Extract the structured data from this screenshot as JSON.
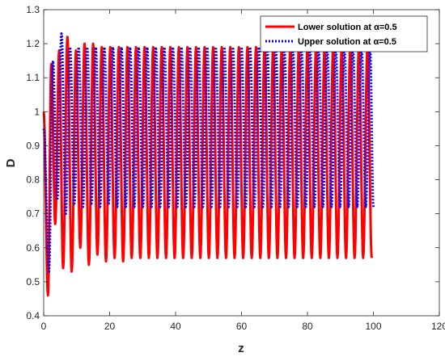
{
  "chart_data": {
    "type": "line",
    "title": "",
    "xlabel": "z",
    "ylabel": "D",
    "xlim": [
      0,
      120
    ],
    "ylim": [
      0.4,
      1.3
    ],
    "xticks": [
      "0",
      "20",
      "40",
      "60",
      "80",
      "100",
      "120"
    ],
    "yticks": [
      "0.4",
      "0.5",
      "0.6",
      "0.7",
      "0.8",
      "0.9",
      "1",
      "1.1",
      "1.2",
      "1.3"
    ],
    "grid": false,
    "legend_position": "top-right",
    "series": [
      {
        "name": "Lower solution at α=0.5",
        "color": "#ff0000",
        "style": "solid",
        "x": [
          0.0,
          1.3,
          2.3,
          3.5,
          4.7,
          5.9,
          7.2,
          8.5,
          9.8,
          11.1,
          12.4,
          13.7,
          15.0,
          16.3,
          17.6,
          18.9,
          20.2,
          21.5,
          22.8,
          24.1,
          25.4,
          26.7,
          28.0,
          29.3,
          30.6,
          31.9,
          33.2,
          34.5,
          35.8,
          37.1,
          38.4,
          39.7,
          41.0,
          42.3,
          43.6,
          44.9,
          46.2,
          47.5,
          48.8,
          50.1,
          51.4,
          52.7,
          54.0,
          55.3,
          56.6,
          57.9,
          59.2,
          60.5,
          61.8,
          63.1,
          64.4,
          65.7,
          67.0,
          68.3,
          69.6,
          70.9,
          72.2,
          73.5,
          74.8,
          76.1,
          77.4,
          78.7,
          80.0,
          81.3,
          82.6,
          83.9,
          85.2,
          86.5,
          87.8,
          89.1,
          90.4,
          91.7,
          93.0,
          94.3,
          95.6,
          96.9,
          98.2,
          99.5
        ],
        "y": [
          1.0,
          0.46,
          1.14,
          0.67,
          1.18,
          0.54,
          1.22,
          0.53,
          1.18,
          0.6,
          1.2,
          0.55,
          1.2,
          0.58,
          1.19,
          0.56,
          1.19,
          0.57,
          1.19,
          0.56,
          1.19,
          0.57,
          1.19,
          0.57,
          1.19,
          0.57,
          1.19,
          0.57,
          1.19,
          0.57,
          1.19,
          0.57,
          1.19,
          0.57,
          1.19,
          0.57,
          1.19,
          0.57,
          1.19,
          0.57,
          1.19,
          0.57,
          1.19,
          0.57,
          1.19,
          0.57,
          1.19,
          0.57,
          1.19,
          0.57,
          1.19,
          0.57,
          1.19,
          0.57,
          1.19,
          0.57,
          1.19,
          0.57,
          1.19,
          0.57,
          1.19,
          0.57,
          1.19,
          0.57,
          1.19,
          0.57,
          1.19,
          0.57,
          1.19,
          0.57,
          1.19,
          0.57,
          1.19,
          0.57,
          1.19,
          0.57,
          1.19,
          0.57
        ]
      },
      {
        "name": "Upper solution at α=0.5",
        "color": "#0000ff",
        "style": "dotted",
        "x": [
          0.0,
          1.6,
          2.8,
          4.1,
          5.4,
          6.7,
          8.0,
          9.3,
          10.6,
          11.9,
          13.2,
          14.5,
          15.8,
          17.1,
          18.4,
          19.7,
          21.0,
          22.3,
          23.6,
          24.9,
          26.2,
          27.5,
          28.8,
          30.1,
          31.4,
          32.7,
          34.0,
          35.3,
          36.6,
          37.9,
          39.2,
          40.5,
          41.8,
          43.1,
          44.4,
          45.7,
          47.0,
          48.3,
          49.6,
          50.9,
          52.2,
          53.5,
          54.8,
          56.1,
          57.4,
          58.7,
          60.0,
          61.3,
          62.6,
          63.9,
          65.2,
          66.5,
          67.8,
          69.1,
          70.4,
          71.7,
          73.0,
          74.3,
          75.6,
          76.9,
          78.2,
          79.5,
          80.8,
          82.1,
          83.4,
          84.7,
          86.0,
          87.3,
          88.6,
          89.9,
          91.2,
          92.5,
          93.8,
          95.1,
          96.4,
          97.7,
          99.0,
          100.0
        ],
        "y": [
          0.95,
          0.53,
          1.15,
          0.74,
          1.23,
          0.7,
          1.19,
          0.73,
          1.19,
          0.72,
          1.19,
          0.73,
          1.19,
          0.72,
          1.19,
          0.73,
          1.19,
          0.72,
          1.19,
          0.72,
          1.19,
          0.72,
          1.19,
          0.72,
          1.19,
          0.72,
          1.19,
          0.72,
          1.19,
          0.72,
          1.19,
          0.72,
          1.19,
          0.72,
          1.19,
          0.72,
          1.19,
          0.72,
          1.19,
          0.72,
          1.19,
          0.72,
          1.19,
          0.72,
          1.19,
          0.72,
          1.19,
          0.72,
          1.19,
          0.72,
          1.19,
          0.72,
          1.19,
          0.72,
          1.19,
          0.72,
          1.19,
          0.72,
          1.19,
          0.72,
          1.19,
          0.72,
          1.19,
          0.72,
          1.19,
          0.72,
          1.19,
          0.72,
          1.19,
          0.72,
          1.19,
          0.72,
          1.19,
          0.72,
          1.19,
          0.72,
          1.19,
          0.72
        ]
      }
    ]
  }
}
